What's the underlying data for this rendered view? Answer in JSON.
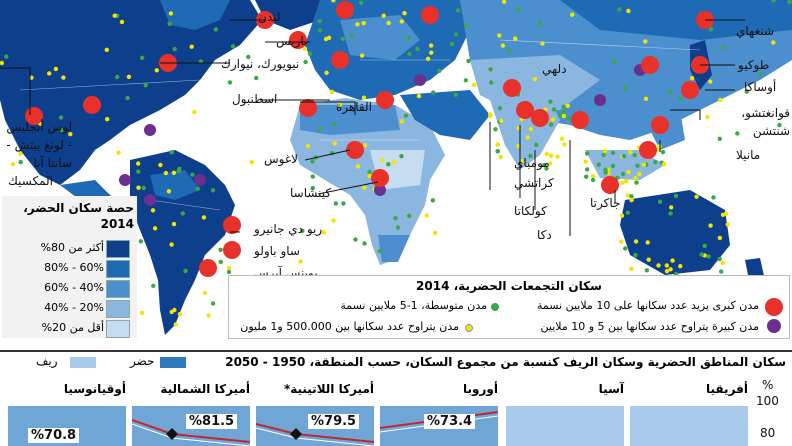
{
  "cities": {
    "london": "لندن",
    "paris": "باريس",
    "newyork": "نيويورك، نيوارك",
    "la": "لوس أنجليس - لونغ بيتش - سانتا آنا",
    "mexico": "المكسيك",
    "istanbul": "اسطنبول",
    "cairo": "القاهرة",
    "lagos": "لاغوس",
    "kinshasa": "كينشاسا",
    "rio": "ريو دي جانيرو",
    "saopaulo": "ساو باولو",
    "buenosaires": "بوينس آيرس",
    "delhi": "دلهي",
    "mumbai": "مومباي",
    "karachi": "كراتشي",
    "kolkata": "كولكاتا",
    "dhaka": "دكا",
    "jakarta": "جاكرتا",
    "manila": "مانيلا",
    "guangzhou": "قوانغتشو، شنتشن",
    "osaka": "أوساكا",
    "tokyo": "طوكيو",
    "shanghai": "شنغهاي"
  },
  "share_legend": {
    "title": "حصة سكان الحضر، 2014",
    "items": [
      {
        "label": "أكثر من 80%",
        "color": "#0d3f8c"
      },
      {
        "label": "60% - 80%",
        "color": "#1f6ab4"
      },
      {
        "label": "40% - 60%",
        "color": "#4b8fcf"
      },
      {
        "label": "20% - 40%",
        "color": "#8ab6e0"
      },
      {
        "label": "أقل من 20%",
        "color": "#c5dcf1"
      }
    ]
  },
  "agglomeration_legend": {
    "title": "سكان التجمعات الحضرية، 2014",
    "items": [
      {
        "label": "مدن كبرى يزيد عدد سكانها على 10 ملايين نسمة",
        "color": "#e8312b"
      },
      {
        "label": "مدن متوسطة، 1-5 ملايين نسمة",
        "color": "#3aa845"
      },
      {
        "label": "مدن كبيرة يتراوح عدد سكانها بين 5 و 10 ملايين",
        "color": "#6b2f8f"
      },
      {
        "label": "مدن يتراوح عدد سكانها بين 500.000 و1 مليون",
        "color": "#f2e600"
      }
    ]
  },
  "bottom": {
    "title": "سكان المناطق الحضرية وسكان الريف كنسبة من مجموع السكان، حسب المنطقة، 1950 - 2050",
    "legend_rural": "ريف",
    "legend_urban": "حضر",
    "axis_unit": "%",
    "axis_100": "100",
    "axis_80": "80",
    "regions": [
      {
        "name": "أفريقيا",
        "value": ""
      },
      {
        "name": "آسيا",
        "value": ""
      },
      {
        "name": "أوروبا",
        "value": "%73.4"
      },
      {
        "name": "أميركا اللاتينية*",
        "value": "%79.5"
      },
      {
        "name": "أميركا الشمالية",
        "value": "%81.5"
      },
      {
        "name": "أوقيانوسيا",
        "value": "%70.8"
      }
    ]
  }
}
